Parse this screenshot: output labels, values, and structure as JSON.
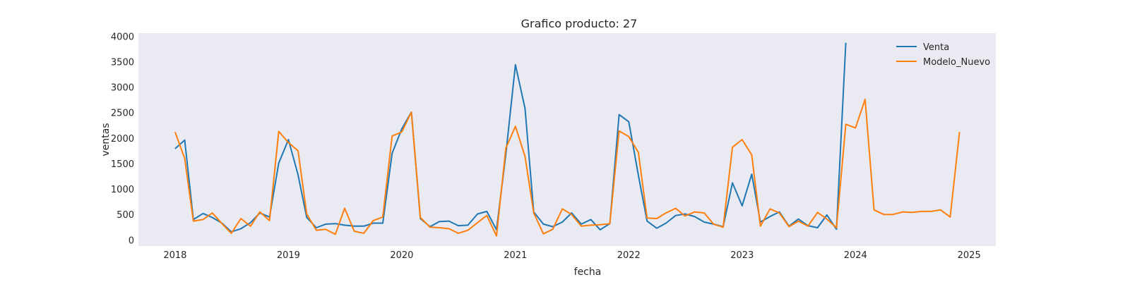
{
  "chart_data": {
    "type": "line",
    "title": "Grafico producto: 27",
    "xlabel": "fecha",
    "ylabel": "ventas",
    "x_ticks": [
      "2018",
      "2019",
      "2020",
      "2021",
      "2022",
      "2023",
      "2024",
      "2025"
    ],
    "y_ticks": [
      0,
      500,
      1000,
      1500,
      2000,
      2500,
      3000,
      3500,
      4000
    ],
    "xlim": [
      "2017-09-05",
      "2025-03-28"
    ],
    "ylim": [
      -120,
      4060
    ],
    "grid": false,
    "background": "#eaeaf2",
    "legend": {
      "position": "top-right"
    },
    "x_start": "2018-01",
    "series": [
      {
        "name": "Venta",
        "color": "#1f77b4",
        "values": [
          1790,
          1960,
          400,
          520,
          440,
          330,
          160,
          220,
          340,
          530,
          450,
          1510,
          1970,
          1280,
          440,
          240,
          310,
          320,
          290,
          270,
          270,
          330,
          330,
          1700,
          2180,
          2510,
          420,
          260,
          360,
          370,
          280,
          290,
          510,
          560,
          200,
          1680,
          3440,
          2580,
          550,
          310,
          260,
          350,
          530,
          310,
          400,
          200,
          320,
          2460,
          2320,
          1270,
          370,
          230,
          330,
          480,
          510,
          460,
          350,
          310,
          260,
          1120,
          670,
          1290,
          350,
          460,
          550,
          270,
          410,
          280,
          240,
          490,
          210,
          3870
        ]
      },
      {
        "name": "Modelo_Nuevo",
        "color": "#ff7f0e",
        "values": [
          2120,
          1600,
          370,
          400,
          530,
          320,
          130,
          420,
          270,
          550,
          380,
          2130,
          1910,
          1750,
          510,
          190,
          210,
          110,
          620,
          170,
          130,
          380,
          450,
          2040,
          2120,
          2510,
          440,
          250,
          240,
          220,
          130,
          190,
          340,
          480,
          80,
          1800,
          2230,
          1640,
          530,
          120,
          210,
          610,
          500,
          270,
          290,
          300,
          320,
          2140,
          2030,
          1720,
          430,
          420,
          530,
          620,
          470,
          550,
          530,
          310,
          250,
          1820,
          1970,
          1670,
          270,
          610,
          530,
          260,
          370,
          270,
          540,
          410,
          240,
          2270,
          2200,
          2760,
          590,
          500,
          500,
          550,
          540,
          560,
          560,
          590,
          450,
          2120
        ]
      }
    ]
  }
}
